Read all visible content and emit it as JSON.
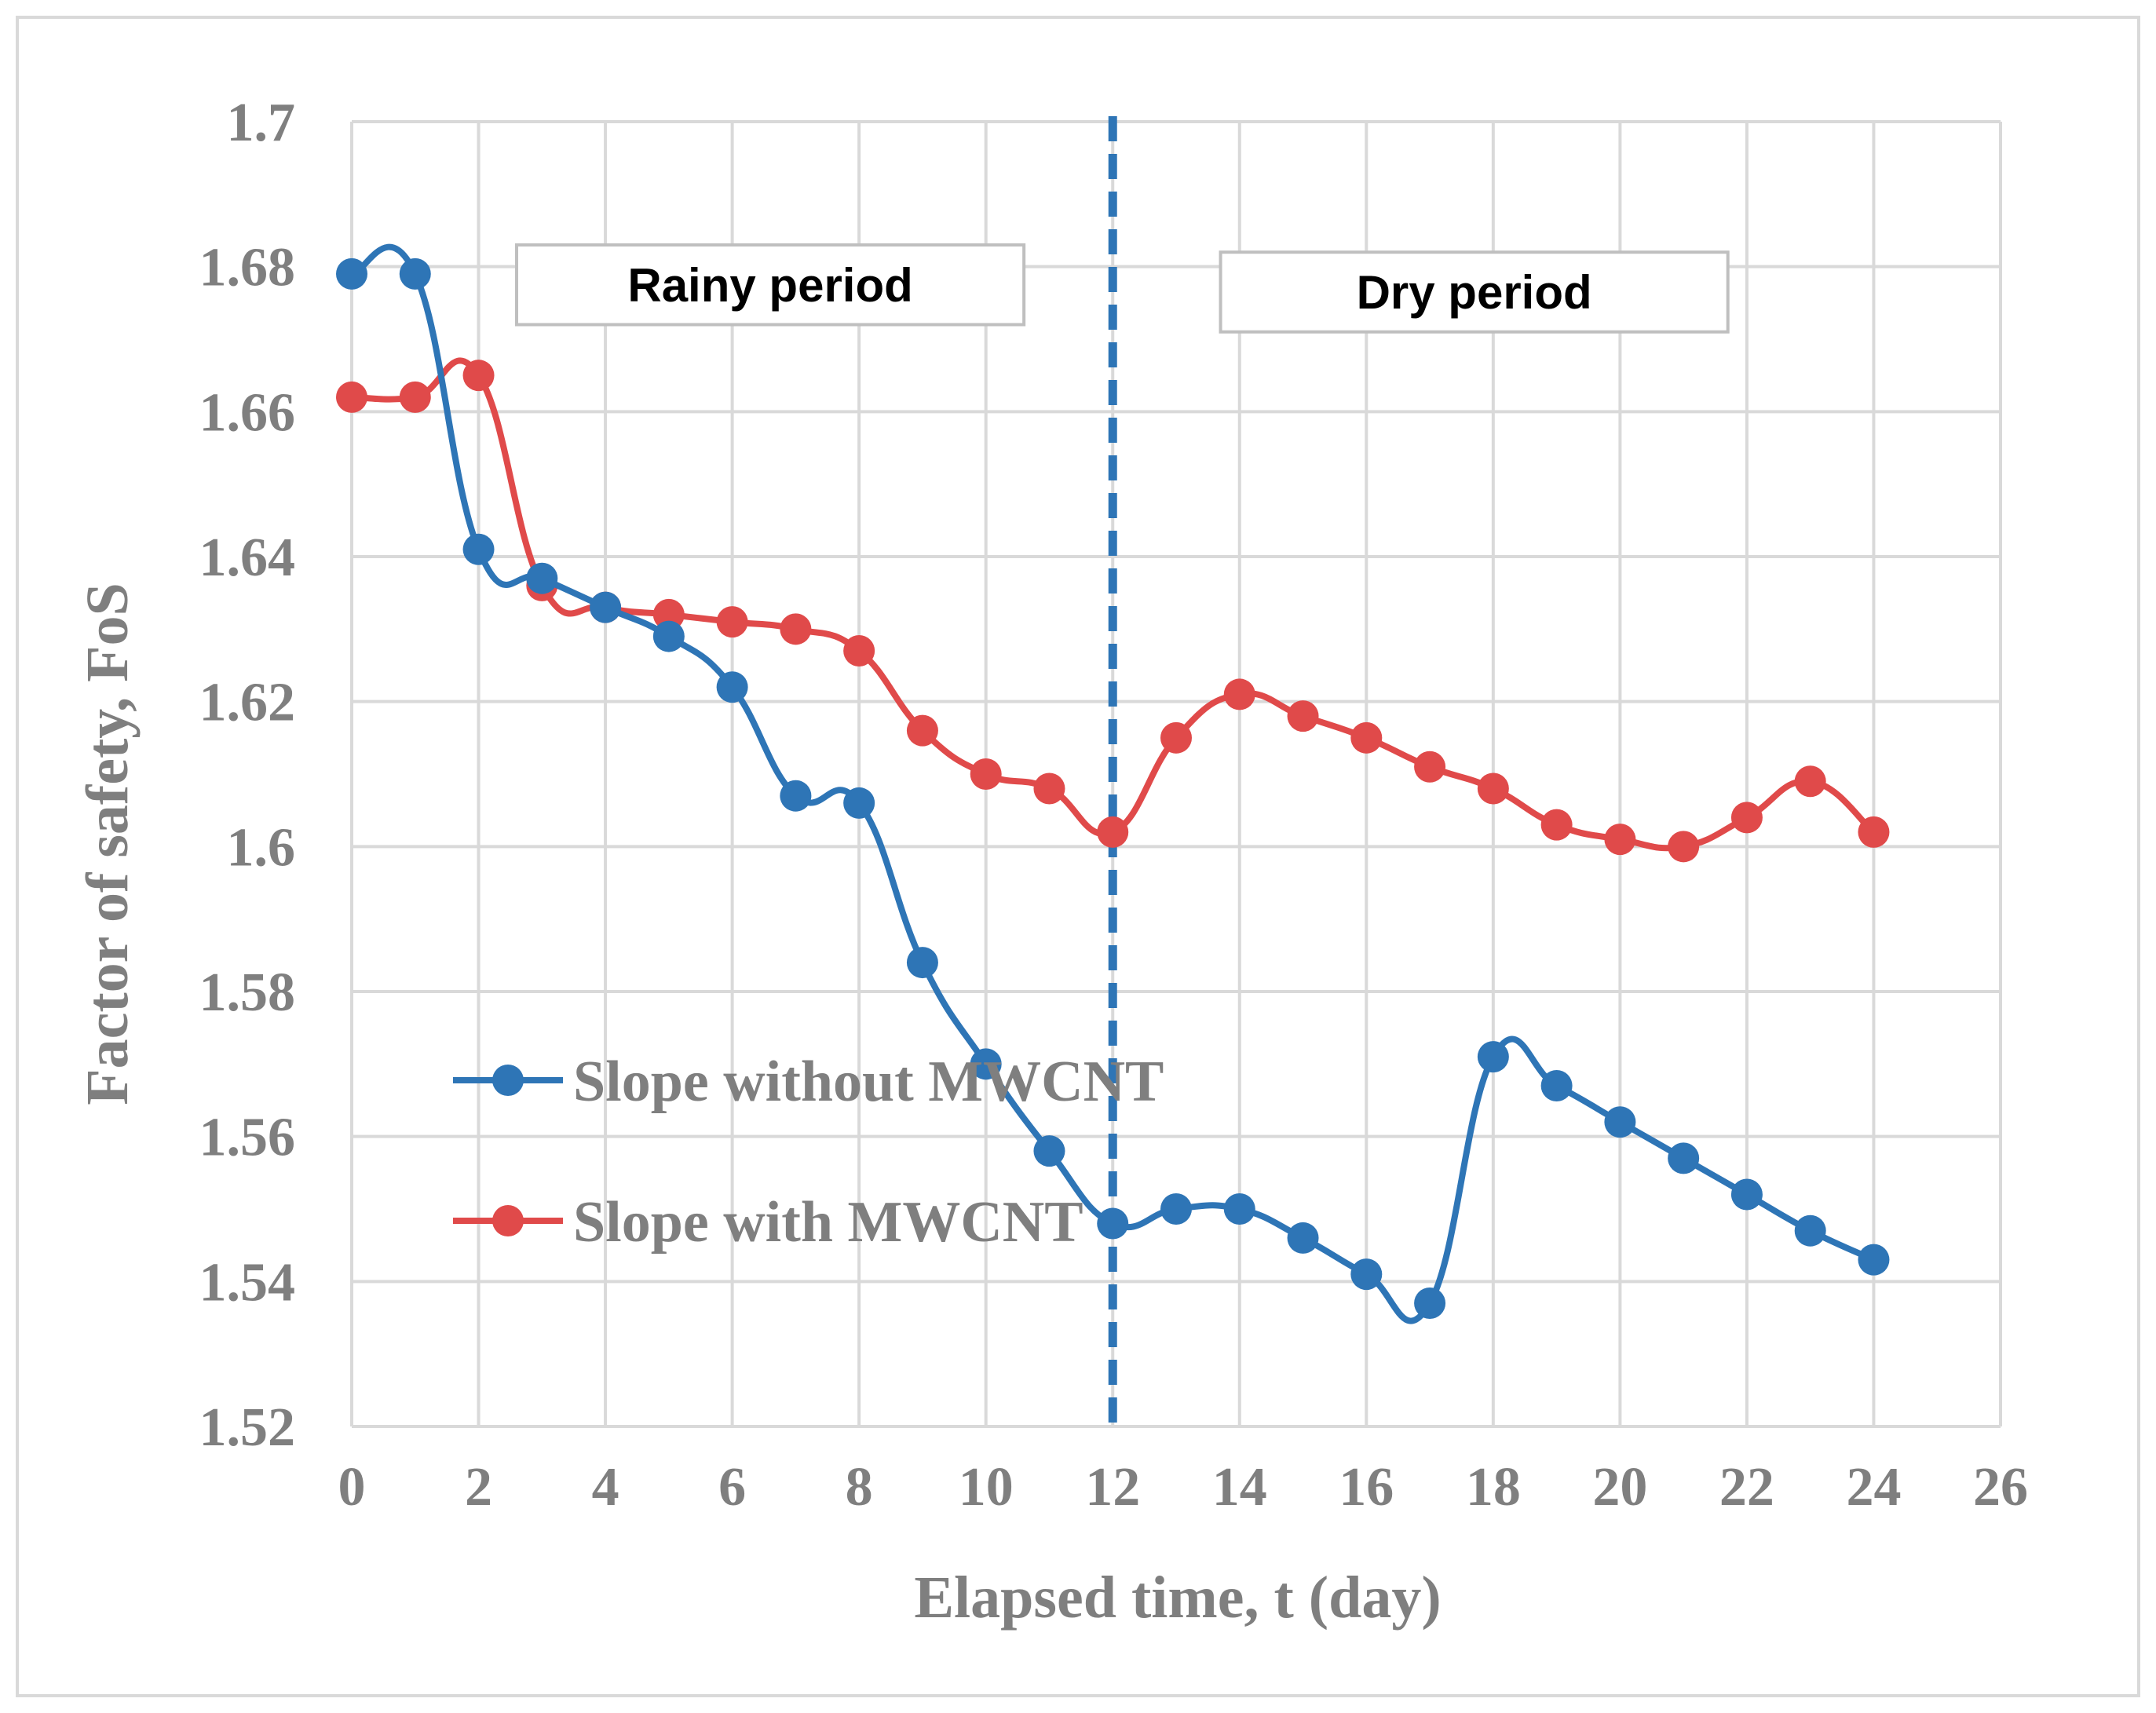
{
  "chart_data": {
    "type": "line",
    "xlabel": "Elapsed time, t (day)",
    "ylabel": "Factor of safety, FoS",
    "xlim": [
      0,
      26
    ],
    "ylim": [
      1.52,
      1.7
    ],
    "x_ticks": [
      0,
      2,
      4,
      6,
      8,
      10,
      12,
      14,
      16,
      18,
      20,
      22,
      24,
      26
    ],
    "y_ticks": [
      1.52,
      1.54,
      1.56,
      1.58,
      1.6,
      1.62,
      1.64,
      1.66,
      1.68,
      1.7
    ],
    "x_tick_labels": [
      "0",
      "2",
      "4",
      "6",
      "8",
      "10",
      "12",
      "14",
      "16",
      "18",
      "20",
      "22",
      "24",
      "26"
    ],
    "y_tick_labels": [
      "1.52",
      "1.54",
      "1.56",
      "1.58",
      "1.6",
      "1.62",
      "1.64",
      "1.66",
      "1.68",
      "1.7"
    ],
    "grid": true,
    "legend_position": "lower-left",
    "series": [
      {
        "name": "Slope without MWCNT",
        "color": "#2e75b6",
        "x": [
          0,
          1,
          2,
          3,
          4,
          5,
          6,
          7,
          8,
          9,
          10,
          11,
          12,
          13,
          14,
          15,
          16,
          17,
          18,
          19,
          20,
          21,
          22,
          23,
          24
        ],
        "values": [
          1.679,
          1.679,
          1.641,
          1.637,
          1.633,
          1.629,
          1.622,
          1.607,
          1.606,
          1.584,
          1.57,
          1.558,
          1.548,
          1.55,
          1.55,
          1.546,
          1.541,
          1.537,
          1.571,
          1.567,
          1.562,
          1.557,
          1.552,
          1.547,
          1.543
        ]
      },
      {
        "name": "Slope with MWCNT",
        "color": "#e04a4a",
        "x": [
          0,
          1,
          2,
          3,
          4,
          5,
          6,
          7,
          8,
          9,
          10,
          11,
          12,
          13,
          14,
          15,
          16,
          17,
          18,
          19,
          20,
          21,
          22,
          23,
          24
        ],
        "values": [
          1.662,
          1.662,
          1.665,
          1.636,
          1.633,
          1.632,
          1.631,
          1.63,
          1.627,
          1.616,
          1.61,
          1.608,
          1.602,
          1.615,
          1.621,
          1.618,
          1.615,
          1.611,
          1.608,
          1.603,
          1.601,
          1.6,
          1.604,
          1.609,
          1.602
        ]
      }
    ],
    "divider": {
      "x": 12,
      "color": "#2e75b6",
      "style": "dashed"
    },
    "annotations": [
      {
        "text": "Rainy period",
        "x_start": 2.6,
        "x_end": 10.6,
        "y_top": 1.683,
        "y_bottom": 1.672
      },
      {
        "text": "Dry period",
        "x_start": 13.7,
        "x_end": 21.7,
        "y_top": 1.682,
        "y_bottom": 1.671
      }
    ]
  }
}
